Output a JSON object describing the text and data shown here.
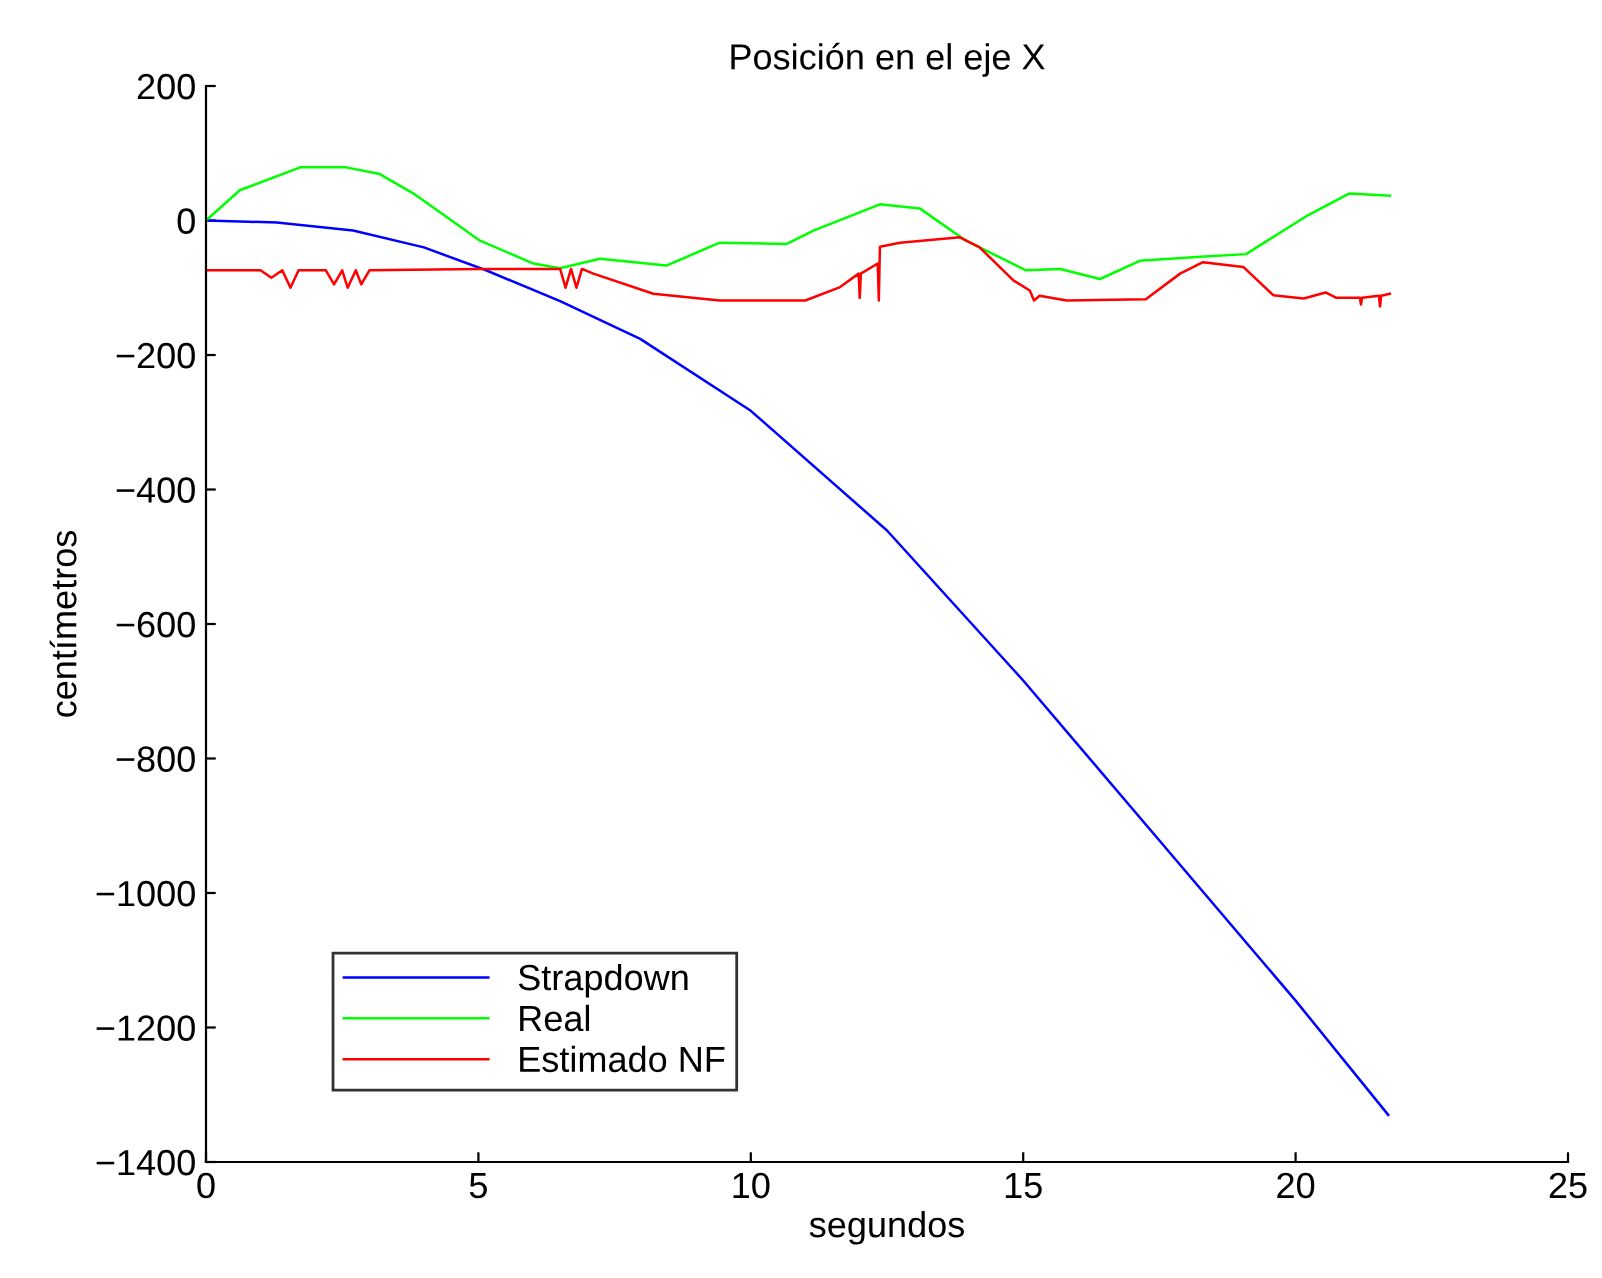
{
  "chart_data": {
    "type": "line",
    "title": "Posición en el eje X",
    "xlabel": "segundos",
    "ylabel": "centímetros",
    "xlim": [
      0,
      25
    ],
    "xticks": [
      0,
      5,
      10,
      15,
      20,
      25
    ],
    "ylim": [
      -1400,
      200
    ],
    "yticks": [
      -1400,
      -1200,
      -1000,
      -800,
      -600,
      -400,
      -200,
      0,
      200
    ],
    "grid": false,
    "legend": "bottom left",
    "series": [
      {
        "name": "Strapdown",
        "color": "#0000ff",
        "x": [
          0,
          1.3,
          2.7,
          4.0,
          5.14,
          6.5,
          7.97,
          10,
          12.5,
          15,
          17.5,
          20,
          21.7
        ],
        "values": [
          0,
          -3,
          -15,
          -40,
          -74,
          -120,
          -176,
          -283,
          -461,
          -684,
          -922,
          -1160,
          -1330
        ]
      },
      {
        "name": "Real",
        "color": "#00ff00",
        "x": [
          0,
          0.62,
          1.73,
          2.57,
          3.19,
          3.81,
          5.03,
          6.01,
          6.5,
          7.23,
          8.45,
          9.43,
          10.65,
          11.15,
          12.37,
          13.1,
          13.95,
          15.05,
          15.68,
          16.41,
          17.14,
          18.25,
          19.09,
          20.19,
          20.98,
          21.73
        ],
        "values": [
          0,
          45,
          79,
          79,
          69,
          40,
          -30,
          -64,
          -71,
          -57,
          -67,
          -33,
          -35,
          -15,
          24,
          18,
          -30,
          -74,
          -72,
          -87,
          -60,
          -54,
          -50,
          6,
          40,
          37
        ]
      },
      {
        "name": "Estimado NF",
        "color": "#ff0000",
        "x": [
          0,
          1.0,
          1.2,
          1.4,
          1.55,
          1.7,
          2.2,
          2.35,
          2.5,
          2.6,
          2.75,
          2.85,
          3.0,
          5,
          6.5,
          6.6,
          6.7,
          6.8,
          6.9,
          7.11,
          8.21,
          9.43,
          11.0,
          11.64,
          11.98,
          12.0,
          12.02,
          12.33,
          12.35,
          12.37,
          12.74,
          13.84,
          14.2,
          14.82,
          15.12,
          15.2,
          15.3,
          15.8,
          17.25,
          17.88,
          18.3,
          19.04,
          19.59,
          20.15,
          20.55,
          20.75,
          21.18,
          21.2,
          21.22,
          21.53,
          21.55,
          21.57,
          21.73
        ],
        "values": [
          -74,
          -74,
          -85,
          -74,
          -100,
          -74,
          -74,
          -95,
          -74,
          -100,
          -74,
          -95,
          -74,
          -72,
          -72,
          -100,
          -72,
          -100,
          -72,
          -79,
          -109,
          -119,
          -119,
          -99,
          -79,
          -115,
          -79,
          -64,
          -119,
          -39,
          -33,
          -25,
          -40,
          -89,
          -104,
          -119,
          -112,
          -119,
          -117,
          -79,
          -62,
          -69,
          -111,
          -116,
          -107,
          -115,
          -115,
          -125,
          -115,
          -112,
          -128,
          -112,
          -109
        ]
      }
    ]
  }
}
